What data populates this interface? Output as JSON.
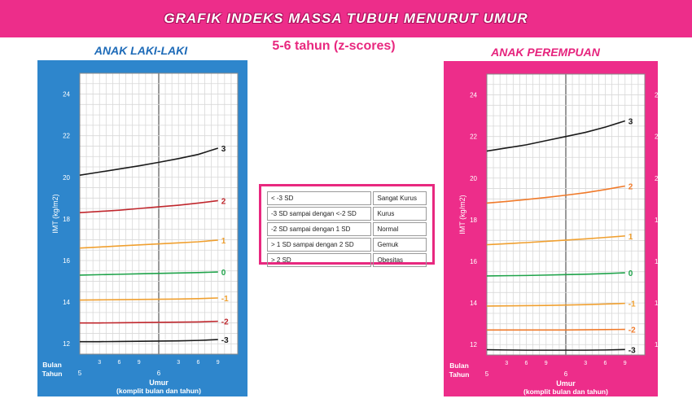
{
  "header": {
    "title": "GRAFIK INDEKS MASSA TUBUH MENURUT UMUR",
    "subtitle": "5-6 tahun (z-scores)"
  },
  "legend_rows": [
    {
      "range": "< -3 SD",
      "category": "Sangat Kurus"
    },
    {
      "range": "-3 SD sampai dengan <-2 SD",
      "category": "Kurus"
    },
    {
      "range": "-2 SD sampai dengan 1 SD",
      "category": "Normal"
    },
    {
      "range": "> 1 SD sampai dengan 2 SD",
      "category": "Gemuk"
    },
    {
      "range": "> 2 SD",
      "category": "Obesitas"
    }
  ],
  "chart_data": [
    {
      "type": "line",
      "title": "ANAK LAKI-LAKI",
      "ylabel": "IMT (kg/m2)",
      "xlabel": "Umur",
      "xlabel_sub": "(komplit bulan dan tahun)",
      "x_row_label_months": "Bulan",
      "x_row_label_years": "Tahun",
      "x_month_ticks": [
        "3",
        "6",
        "9",
        "3",
        "6",
        "9"
      ],
      "x_year_ticks": [
        "5",
        "6"
      ],
      "ylim": [
        11.5,
        25
      ],
      "y_ticks": [
        12,
        14,
        16,
        18,
        20,
        22,
        24
      ],
      "x": [
        0,
        3,
        6,
        9,
        12,
        15,
        18,
        21
      ],
      "series": [
        {
          "name": "3",
          "color": "#1a1a1a",
          "values": [
            20.1,
            20.25,
            20.4,
            20.55,
            20.72,
            20.9,
            21.1,
            21.4
          ]
        },
        {
          "name": "2",
          "color": "#c0272d",
          "values": [
            18.3,
            18.36,
            18.42,
            18.5,
            18.58,
            18.66,
            18.76,
            18.88
          ]
        },
        {
          "name": "1",
          "color": "#f0a030",
          "values": [
            16.6,
            16.65,
            16.7,
            16.75,
            16.8,
            16.85,
            16.9,
            16.98
          ]
        },
        {
          "name": "0",
          "color": "#1fa34a",
          "values": [
            15.3,
            15.32,
            15.34,
            15.36,
            15.38,
            15.4,
            15.42,
            15.45
          ]
        },
        {
          "name": "-1",
          "color": "#f0a030",
          "values": [
            14.1,
            14.11,
            14.12,
            14.13,
            14.14,
            14.15,
            14.17,
            14.2
          ]
        },
        {
          "name": "-2",
          "color": "#c0272d",
          "values": [
            13.0,
            13.0,
            13.01,
            13.02,
            13.03,
            13.04,
            13.05,
            13.08
          ]
        },
        {
          "name": "-3",
          "color": "#1a1a1a",
          "values": [
            12.1,
            12.1,
            12.11,
            12.12,
            12.13,
            12.14,
            12.16,
            12.2
          ]
        }
      ]
    },
    {
      "type": "line",
      "title": "ANAK PEREMPUAN",
      "ylabel": "IMT (kg/m2)",
      "xlabel": "Umur",
      "xlabel_sub": "(komplit bulan dan tahun)",
      "x_row_label_months": "Bulan",
      "x_row_label_years": "Tahun",
      "x_month_ticks": [
        "3",
        "6",
        "9",
        "3",
        "6",
        "9"
      ],
      "x_year_ticks": [
        "5",
        "6"
      ],
      "ylim": [
        11.5,
        25
      ],
      "y_ticks": [
        12,
        14,
        16,
        18,
        20,
        22,
        24
      ],
      "x": [
        0,
        3,
        6,
        9,
        12,
        15,
        18,
        21
      ],
      "series": [
        {
          "name": "3",
          "color": "#1a1a1a",
          "values": [
            21.3,
            21.45,
            21.6,
            21.8,
            22.0,
            22.2,
            22.45,
            22.75
          ]
        },
        {
          "name": "2",
          "color": "#f07a2a",
          "values": [
            18.8,
            18.88,
            18.97,
            19.07,
            19.18,
            19.3,
            19.45,
            19.62
          ]
        },
        {
          "name": "1",
          "color": "#f0a030",
          "values": [
            16.8,
            16.85,
            16.9,
            16.96,
            17.02,
            17.08,
            17.15,
            17.22
          ]
        },
        {
          "name": "0",
          "color": "#1fa34a",
          "values": [
            15.3,
            15.31,
            15.32,
            15.34,
            15.36,
            15.38,
            15.41,
            15.45
          ]
        },
        {
          "name": "-1",
          "color": "#f0a030",
          "values": [
            13.85,
            13.86,
            13.87,
            13.88,
            13.9,
            13.92,
            13.95,
            13.98
          ]
        },
        {
          "name": "-2",
          "color": "#f07a2a",
          "values": [
            12.7,
            12.7,
            12.7,
            12.7,
            12.7,
            12.71,
            12.72,
            12.73
          ]
        },
        {
          "name": "-3",
          "color": "#1a1a1a",
          "values": [
            11.75,
            11.74,
            11.73,
            11.73,
            11.73,
            11.73,
            11.74,
            11.76
          ]
        }
      ]
    }
  ]
}
